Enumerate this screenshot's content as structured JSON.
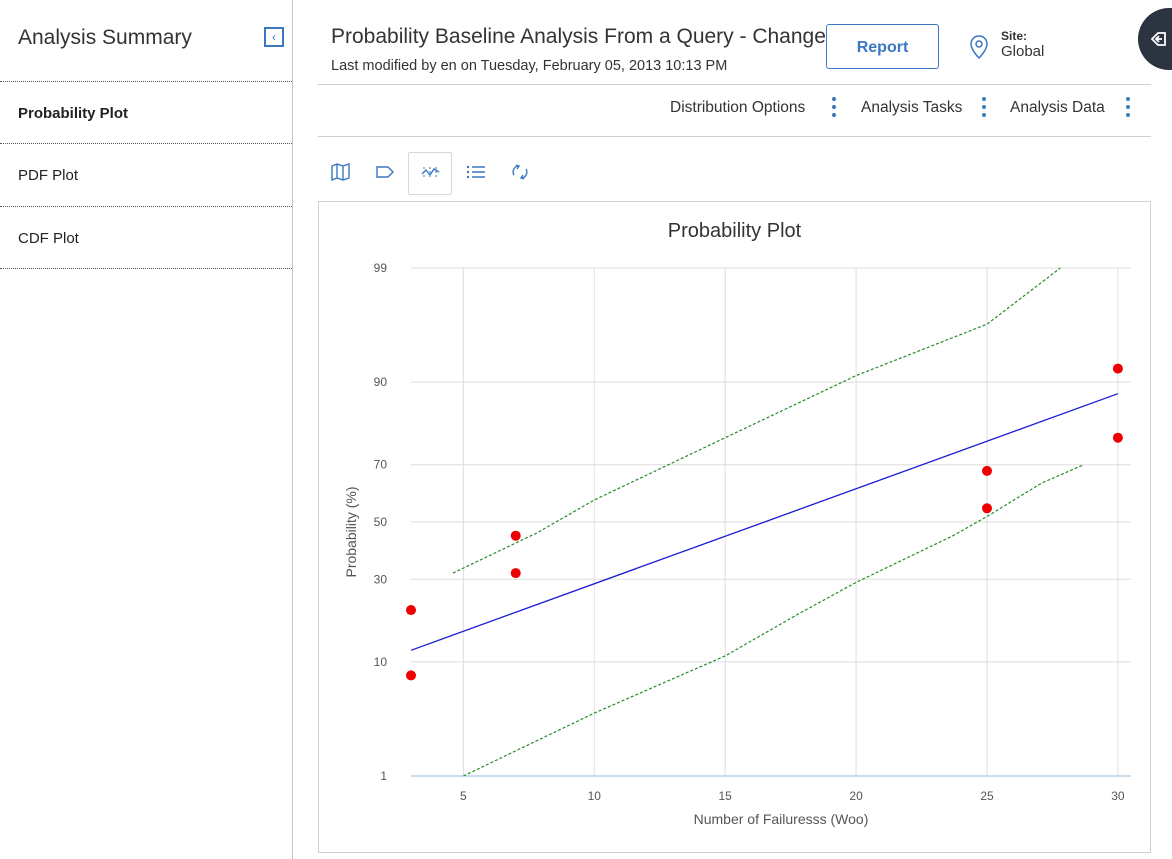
{
  "sidebar": {
    "title": "Analysis Summary",
    "items": [
      {
        "label": "Probability Plot",
        "active": true
      },
      {
        "label": "PDF Plot",
        "active": false
      },
      {
        "label": "CDF Plot",
        "active": false
      }
    ]
  },
  "header": {
    "title": "Probability Baseline Analysis From a Query - Changed",
    "subtitle": "Last modified by en on Tuesday, February 05, 2013 10:13 PM",
    "report_label": "Report",
    "site_label": "Site:",
    "site_value": "Global"
  },
  "menu": {
    "items": [
      "Distribution Options",
      "Analysis Tasks",
      "Analysis Data"
    ]
  },
  "toolbar": {
    "icons": [
      "map-icon",
      "tag-icon",
      "plot-icon",
      "list-icon",
      "refresh-icon"
    ],
    "active": "plot-icon"
  },
  "colors": {
    "accent": "#3a78c2",
    "fit_line": "#1a1ad6",
    "confidence": "#2a8a2a",
    "points": "#ee0000"
  },
  "chart_data": {
    "type": "scatter",
    "title": "Probability Plot",
    "xlabel": "Number of Failuresss (Woo)",
    "ylabel": "Probability (%)",
    "xlim": [
      3,
      30.5
    ],
    "x_ticks": [
      5,
      10,
      15,
      20,
      25,
      30
    ],
    "y_ticks": [
      1,
      10,
      30,
      50,
      70,
      90,
      99
    ],
    "y_scale": "probability",
    "grid": true,
    "points": [
      {
        "x": 3,
        "y": 8
      },
      {
        "x": 3,
        "y": 21
      },
      {
        "x": 7,
        "y": 32
      },
      {
        "x": 7,
        "y": 45
      },
      {
        "x": 25,
        "y": 55
      },
      {
        "x": 25,
        "y": 68
      },
      {
        "x": 30,
        "y": 78
      },
      {
        "x": 30,
        "y": 92
      }
    ],
    "fit_line": [
      {
        "x": 3,
        "y": 12
      },
      {
        "x": 30,
        "y": 88
      }
    ],
    "upper_bound": [
      {
        "x": 4.6,
        "y": 32
      },
      {
        "x": 7.8,
        "y": 46
      },
      {
        "x": 10,
        "y": 58
      },
      {
        "x": 15,
        "y": 78
      },
      {
        "x": 20,
        "y": 91
      },
      {
        "x": 25,
        "y": 96.5
      },
      {
        "x": 27.8,
        "y": 99
      }
    ],
    "lower_bound": [
      {
        "x": 5,
        "y": 1
      },
      {
        "x": 10,
        "y": 4
      },
      {
        "x": 15,
        "y": 11
      },
      {
        "x": 17.8,
        "y": 20
      },
      {
        "x": 20,
        "y": 29
      },
      {
        "x": 23.7,
        "y": 45
      },
      {
        "x": 25,
        "y": 52
      },
      {
        "x": 27.1,
        "y": 64
      },
      {
        "x": 28.7,
        "y": 70
      }
    ]
  }
}
